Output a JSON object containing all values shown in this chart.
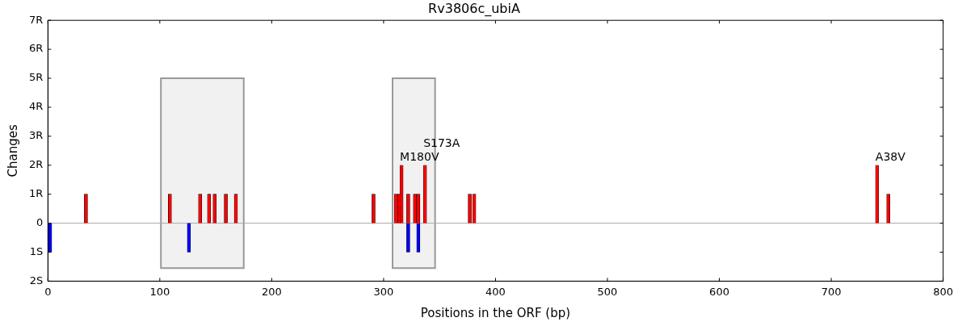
{
  "chart_data": {
    "type": "bar",
    "title": "Rv3806c_ubiA",
    "xlabel": "Positions in the ORF (bp)",
    "ylabel": "Changes",
    "series": [
      {
        "color": "#ff0000",
        "x": [
          34,
          109,
          136,
          144,
          149,
          159,
          168,
          291,
          311,
          314,
          316,
          322,
          328,
          331,
          337,
          377,
          381,
          741,
          751
        ],
        "values": [
          1,
          1,
          1,
          1,
          1,
          1,
          1,
          1,
          1,
          1,
          2,
          1,
          1,
          1,
          2,
          1,
          1,
          2,
          1
        ]
      },
      {
        "color": "#0000ff",
        "x": [
          2,
          126,
          322,
          331
        ],
        "values": [
          -1,
          -1,
          -1,
          -1
        ]
      }
    ],
    "xlim": [
      0,
      800
    ],
    "xticks": [
      0,
      100,
      200,
      300,
      400,
      500,
      600,
      700,
      800
    ],
    "ylim": [
      -2,
      7
    ],
    "yticks": [
      {
        "value": -2,
        "label": "2S"
      },
      {
        "value": -1,
        "label": "1S"
      },
      0,
      {
        "value": 1,
        "label": "1R"
      },
      {
        "value": 2,
        "label": "2R"
      },
      {
        "value": 3,
        "label": "3R"
      },
      {
        "value": 4,
        "label": "4R"
      },
      {
        "value": 5,
        "label": "5R"
      },
      {
        "value": 6,
        "label": "6R"
      },
      {
        "value": 7,
        "label": "7R"
      }
    ],
    "ref_lines": [
      {
        "axis": "y",
        "value": 0,
        "color": "#aaaaaa"
      }
    ],
    "bands": [
      {
        "axis": "x",
        "from": 101,
        "to": 175,
        "color": "#999999"
      },
      {
        "axis": "x",
        "from": 308,
        "to": 346,
        "color": "#999999"
      }
    ],
    "annotations": [
      {
        "text": "M180V",
        "x": 316,
        "y": 2
      },
      {
        "text": "S173A",
        "x": 337,
        "y": 2
      },
      {
        "text": "A38V",
        "x": 741,
        "y": 2
      }
    ],
    "grid": false,
    "legend": false
  }
}
